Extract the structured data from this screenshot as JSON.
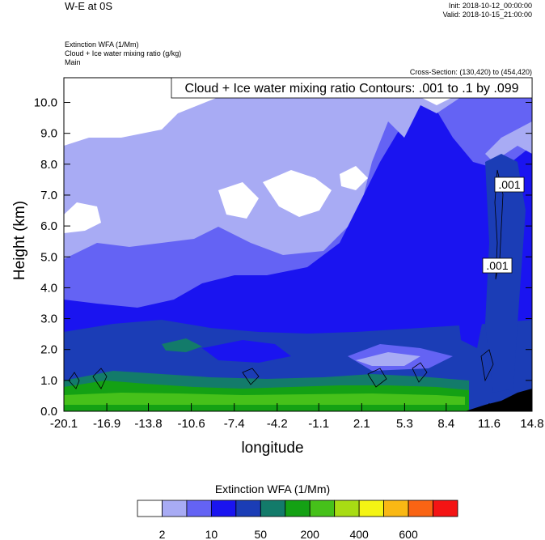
{
  "header": {
    "title": "W-E at 0S",
    "init": "Init: 2018-10-12_00:00:00",
    "valid": "Valid: 2018-10-15_21:00:00",
    "fields": [
      "Extinction WFA   (1/Mm)",
      "Cloud + Ice water mixing ratio   (g/kg)",
      "Main"
    ],
    "cross_section": "Cross-Section: (130,420) to (454,420)"
  },
  "contour_info": "Cloud + Ice water mixing ratio Contours: .001 to .1 by .099",
  "contour_labels": [
    ".001",
    ".001"
  ],
  "colorbar": {
    "title": "Extinction WFA  (1/Mm)",
    "colors": [
      "#ffffff",
      "#a8abf4",
      "#6463f4",
      "#1a14f0",
      "#1b3db6",
      "#137b6a",
      "#14a114",
      "#46c11a",
      "#a8dc14",
      "#f4f414",
      "#f9b814",
      "#f96414",
      "#f41414"
    ],
    "labels": [
      "2",
      "10",
      "50",
      "200",
      "400",
      "600"
    ]
  },
  "chart_data": {
    "type": "heatmap",
    "title": "Cloud + Ice water mixing ratio Contours: .001 to .1 by .099",
    "xlabel": "longitude",
    "ylabel": "Height (km)",
    "x_ticks": [
      "-20.1",
      "-16.9",
      "-13.8",
      "-10.6",
      "-7.4",
      "-4.2",
      "-1.1",
      "2.1",
      "5.3",
      "8.4",
      "11.6",
      "14.8"
    ],
    "y_ticks": [
      "0.0",
      "1.0",
      "2.0",
      "3.0",
      "4.0",
      "5.0",
      "6.0",
      "7.0",
      "8.0",
      "9.0",
      "10.0"
    ],
    "xlim": [
      -20.1,
      14.8
    ],
    "ylim": [
      0,
      10.8
    ],
    "colorbar_levels": [
      2,
      10,
      50,
      200,
      400,
      600
    ]
  }
}
